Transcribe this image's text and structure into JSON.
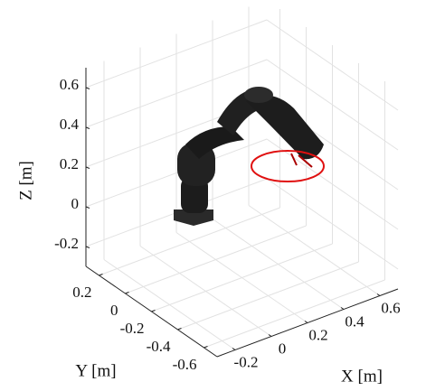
{
  "chart_data": {
    "type": "robot-scene",
    "xlabel": "X [m]",
    "ylabel": "Y [m]",
    "zlabel": "Z [m]",
    "xlim": [
      -0.3,
      0.7
    ],
    "ylim": [
      -0.7,
      0.3
    ],
    "zlim": [
      -0.3,
      0.7
    ],
    "xticks": [
      -0.2,
      0,
      0.2,
      0.4,
      0.6
    ],
    "yticks": [
      -0.6,
      -0.4,
      -0.2,
      0,
      0.2
    ],
    "zticks": [
      -0.2,
      0,
      0.2,
      0.4,
      0.6
    ],
    "grid": true
  }
}
